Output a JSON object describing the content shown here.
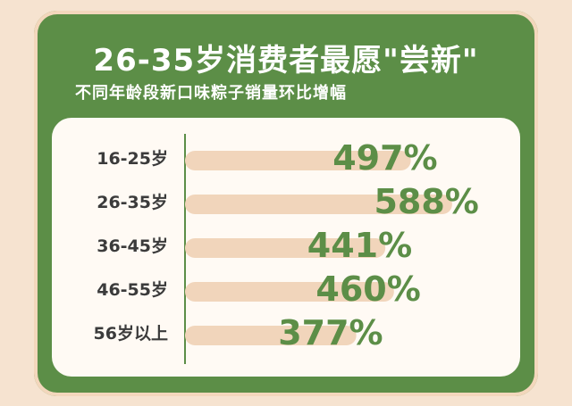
{
  "title": "26-35岁消费者最愿\"尝新\"",
  "subtitle": "不同年龄段新口味粽子销量环比增幅",
  "colors": {
    "background": "#f6e3d0",
    "card": "#5c8e47",
    "bar": "#f1d5bb",
    "label": "#5c8e47",
    "axis": "#5c8e47"
  },
  "chart_data": {
    "type": "bar",
    "orientation": "horizontal",
    "title": "26-35岁消费者最愿\"尝新\"",
    "subtitle": "不同年龄段新口味粽子销量环比增幅",
    "categories": [
      "16-25岁",
      "26-35岁",
      "36-45岁",
      "46-55岁",
      "56岁以上"
    ],
    "values": [
      497,
      588,
      441,
      460,
      377
    ],
    "value_labels": [
      "497%",
      "588%",
      "441%",
      "460%",
      "377%"
    ],
    "unit": "%",
    "xlim": [
      0,
      600
    ],
    "grid": false,
    "legend": "none"
  }
}
